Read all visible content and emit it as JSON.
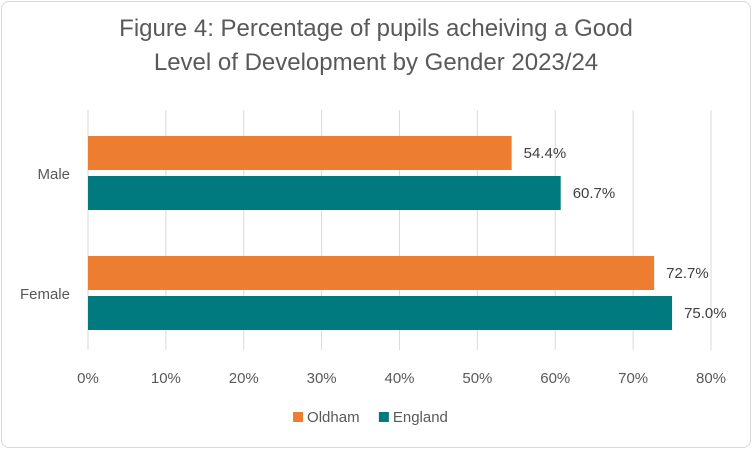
{
  "chart_data": {
    "type": "bar",
    "orientation": "horizontal",
    "title_lines": [
      "Figure 4: Percentage of pupils acheiving a Good",
      "Level of Development by Gender 2023/24"
    ],
    "categories": [
      "Male",
      "Female"
    ],
    "series": [
      {
        "name": "Oldham",
        "color": "#ed7d31",
        "values": [
          54.4,
          72.7
        ],
        "labels": [
          "54.4%",
          "72.7%"
        ]
      },
      {
        "name": "England",
        "color": "#00797f",
        "values": [
          60.7,
          75.0
        ],
        "labels": [
          "60.7%",
          "75.0%"
        ]
      }
    ],
    "xlim": [
      0,
      80
    ],
    "x_ticks": [
      0,
      10,
      20,
      30,
      40,
      50,
      60,
      70,
      80
    ],
    "x_tick_labels": [
      "0%",
      "10%",
      "20%",
      "30%",
      "40%",
      "50%",
      "60%",
      "70%",
      "80%"
    ],
    "grid": true,
    "legend_position": "bottom"
  }
}
